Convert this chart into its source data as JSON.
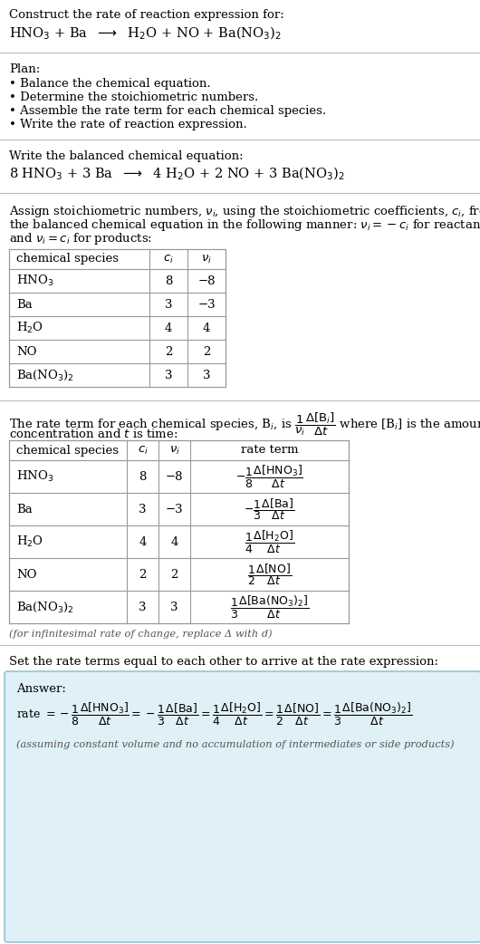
{
  "title_text": "Construct the rate of reaction expression for:",
  "reaction_unbalanced": "HNO$_3$ + Ba  $\\longrightarrow$  H$_2$O + NO + Ba(NO$_3$)$_2$",
  "plan_header": "Plan:",
  "plan_items": [
    "• Balance the chemical equation.",
    "• Determine the stoichiometric numbers.",
    "• Assemble the rate term for each chemical species.",
    "• Write the rate of reaction expression."
  ],
  "balanced_header": "Write the balanced chemical equation:",
  "reaction_balanced": "8 HNO$_3$ + 3 Ba  $\\longrightarrow$  4 H$_2$O + 2 NO + 3 Ba(NO$_3$)$_2$",
  "stoich_intro": "Assign stoichiometric numbers, $\\nu_i$, using the stoichiometric coefficients, $c_i$, from\nthe balanced chemical equation in the following manner: $\\nu_i = -c_i$ for reactants\nand $\\nu_i = c_i$ for products:",
  "table1_headers": [
    "chemical species",
    "$c_i$",
    "$\\nu_i$"
  ],
  "table1_data": [
    [
      "HNO$_3$",
      "8",
      "−8"
    ],
    [
      "Ba",
      "3",
      "−3"
    ],
    [
      "H$_2$O",
      "4",
      "4"
    ],
    [
      "NO",
      "2",
      "2"
    ],
    [
      "Ba(NO$_3$)$_2$",
      "3",
      "3"
    ]
  ],
  "rate_intro_line1": "The rate term for each chemical species, B$_i$, is $\\dfrac{1}{\\nu_i}\\dfrac{\\Delta[\\mathrm{B}_i]}{\\Delta t}$ where [B$_i$] is the amount",
  "rate_intro_line2": "concentration and $t$ is time:",
  "table2_headers": [
    "chemical species",
    "$c_i$",
    "$\\nu_i$",
    "rate term"
  ],
  "table2_data": [
    [
      "HNO$_3$",
      "8",
      "−8",
      "$-\\dfrac{1}{8}\\dfrac{\\Delta[\\mathrm{HNO_3}]}{\\Delta t}$"
    ],
    [
      "Ba",
      "3",
      "−3",
      "$-\\dfrac{1}{3}\\dfrac{\\Delta[\\mathrm{Ba}]}{\\Delta t}$"
    ],
    [
      "H$_2$O",
      "4",
      "4",
      "$\\dfrac{1}{4}\\dfrac{\\Delta[\\mathrm{H_2O}]}{\\Delta t}$"
    ],
    [
      "NO",
      "2",
      "2",
      "$\\dfrac{1}{2}\\dfrac{\\Delta[\\mathrm{NO}]}{\\Delta t}$"
    ],
    [
      "Ba(NO$_3$)$_2$",
      "3",
      "3",
      "$\\dfrac{1}{3}\\dfrac{\\Delta[\\mathrm{Ba(NO_3)_2}]}{\\Delta t}$"
    ]
  ],
  "infinitesimal_note": "(for infinitesimal rate of change, replace Δ with d)",
  "set_equal_text": "Set the rate terms equal to each other to arrive at the rate expression:",
  "answer_box_color": "#dff0f7",
  "answer_border_color": "#88bbcc",
  "answer_label": "Answer:",
  "rate_expr_line": "rate $= -\\dfrac{1}{8}\\dfrac{\\Delta[\\mathrm{HNO_3}]}{\\Delta t} = -\\dfrac{1}{3}\\dfrac{\\Delta[\\mathrm{Ba}]}{\\Delta t} = \\dfrac{1}{4}\\dfrac{\\Delta[\\mathrm{H_2O}]}{\\Delta t} = \\dfrac{1}{2}\\dfrac{\\Delta[\\mathrm{NO}]}{\\Delta t} = \\dfrac{1}{3}\\dfrac{\\Delta[\\mathrm{Ba(NO_3)_2}]}{\\Delta t}$",
  "assumption_note": "(assuming constant volume and no accumulation of intermediates or side products)",
  "bg_color": "#ffffff",
  "text_color": "#000000",
  "gray_text": "#555555",
  "sep_color": "#bbbbbb",
  "fs": 9.5,
  "fs_small": 8.2
}
